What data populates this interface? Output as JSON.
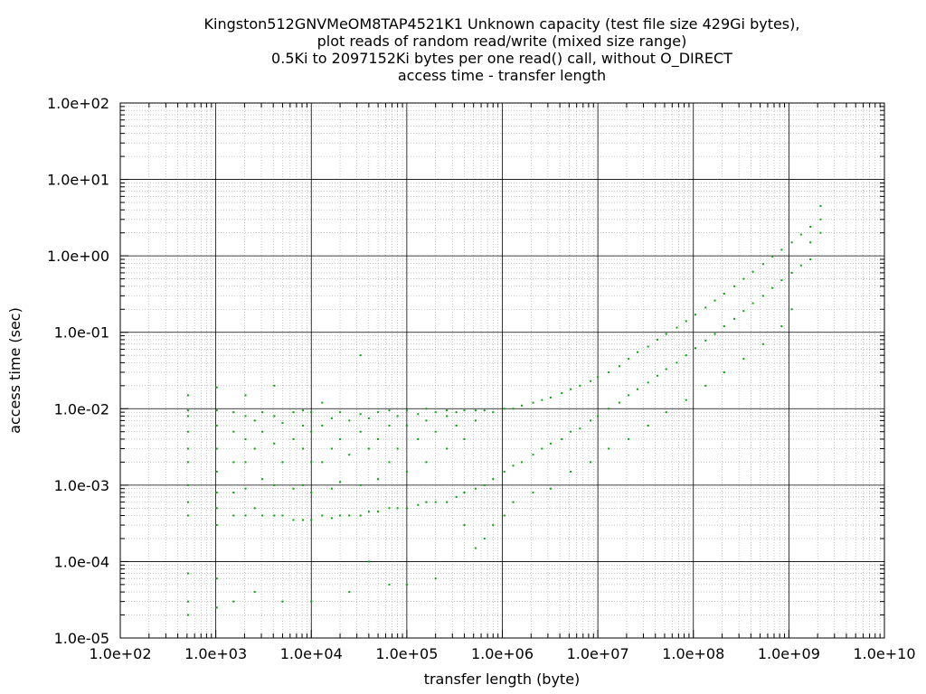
{
  "chart_data": {
    "type": "scatter",
    "title_lines": [
      "Kingston512GNVMeOM8TAP4521K1 Unknown capacity (test file size 429Gi bytes),",
      "plot reads of random read/write (mixed size range)",
      "0.5Ki to 2097152Ki bytes per one read() call, without O_DIRECT",
      "access time - transfer length"
    ],
    "xlabel": "transfer length (byte)",
    "ylabel": "access time (sec)",
    "x_scale": "log",
    "y_scale": "log",
    "xlim": [
      100,
      10000000000
    ],
    "ylim": [
      1e-05,
      100
    ],
    "x_ticks": [
      {
        "value": 100,
        "label": "1.0e+02"
      },
      {
        "value": 1000,
        "label": "1.0e+03"
      },
      {
        "value": 10000,
        "label": "1.0e+04"
      },
      {
        "value": 100000,
        "label": "1.0e+05"
      },
      {
        "value": 1000000,
        "label": "1.0e+06"
      },
      {
        "value": 10000000,
        "label": "1.0e+07"
      },
      {
        "value": 100000000,
        "label": "1.0e+08"
      },
      {
        "value": 1000000000,
        "label": "1.0e+09"
      },
      {
        "value": 10000000000,
        "label": "1.0e+10"
      }
    ],
    "y_ticks": [
      {
        "value": 1e-05,
        "label": "1.0e-05"
      },
      {
        "value": 0.0001,
        "label": "1.0e-04"
      },
      {
        "value": 0.001,
        "label": "1.0e-03"
      },
      {
        "value": 0.01,
        "label": "1.0e-02"
      },
      {
        "value": 0.1,
        "label": "1.0e-01"
      },
      {
        "value": 1,
        "label": "1.0e+00"
      },
      {
        "value": 10,
        "label": "1.0e+01"
      },
      {
        "value": 100,
        "label": "1.0e+02"
      }
    ],
    "grid": true,
    "legend": false,
    "series": [
      {
        "color": "#00aa00",
        "points": [
          [
            512,
            0.0004
          ],
          [
            512,
            0.0006
          ],
          [
            512,
            0.001
          ],
          [
            512,
            0.002
          ],
          [
            512,
            0.003
          ],
          [
            512,
            0.005
          ],
          [
            512,
            0.008
          ],
          [
            512,
            0.0095
          ],
          [
            512,
            0.015
          ],
          [
            512,
            7e-05
          ],
          [
            512,
            3e-05
          ],
          [
            512,
            2e-05
          ],
          [
            1024,
            0.0003
          ],
          [
            1024,
            0.0005
          ],
          [
            1024,
            0.0008
          ],
          [
            1024,
            0.0015
          ],
          [
            1024,
            0.003
          ],
          [
            1024,
            0.006
          ],
          [
            1024,
            0.0095
          ],
          [
            1024,
            0.019
          ],
          [
            1024,
            6e-05
          ],
          [
            1024,
            2.5e-05
          ],
          [
            1536,
            0.0004
          ],
          [
            1536,
            0.0008
          ],
          [
            1536,
            0.002
          ],
          [
            1536,
            0.005
          ],
          [
            1536,
            0.009
          ],
          [
            1536,
            3e-05
          ],
          [
            2048,
            0.0004
          ],
          [
            2048,
            0.0009
          ],
          [
            2048,
            0.002
          ],
          [
            2048,
            0.004
          ],
          [
            2048,
            0.008
          ],
          [
            2048,
            0.015
          ],
          [
            2560,
            0.0005
          ],
          [
            2560,
            0.003
          ],
          [
            2560,
            0.007
          ],
          [
            2560,
            4e-05
          ],
          [
            3072,
            0.0004
          ],
          [
            3072,
            0.0012
          ],
          [
            3072,
            0.005
          ],
          [
            3072,
            0.009
          ],
          [
            4096,
            0.0004
          ],
          [
            4096,
            0.001
          ],
          [
            4096,
            0.0035
          ],
          [
            4096,
            0.008
          ],
          [
            4096,
            0.02
          ],
          [
            5000,
            0.0004
          ],
          [
            5000,
            0.002
          ],
          [
            5000,
            0.0065
          ],
          [
            5000,
            3e-05
          ],
          [
            6500,
            0.00035
          ],
          [
            6500,
            0.0009
          ],
          [
            6500,
            0.004
          ],
          [
            6500,
            0.009
          ],
          [
            8192,
            0.00035
          ],
          [
            8192,
            0.001
          ],
          [
            8192,
            0.003
          ],
          [
            8192,
            0.006
          ],
          [
            8192,
            0.0095
          ],
          [
            10000,
            0.00035
          ],
          [
            10000,
            0.0008
          ],
          [
            10000,
            0.002
          ],
          [
            10000,
            0.005
          ],
          [
            10000,
            0.009
          ],
          [
            10000,
            3e-05
          ],
          [
            13000,
            0.0004
          ],
          [
            13000,
            0.002
          ],
          [
            13000,
            0.006
          ],
          [
            13000,
            0.012
          ],
          [
            16384,
            0.00037
          ],
          [
            16384,
            0.0009
          ],
          [
            16384,
            0.003
          ],
          [
            16384,
            0.0075
          ],
          [
            20000,
            0.0004
          ],
          [
            20000,
            0.0011
          ],
          [
            20000,
            0.004
          ],
          [
            20000,
            0.009
          ],
          [
            25000,
            0.0004
          ],
          [
            25000,
            0.0025
          ],
          [
            25000,
            0.007
          ],
          [
            25000,
            4e-05
          ],
          [
            32768,
            0.0004
          ],
          [
            32768,
            0.001
          ],
          [
            32768,
            0.005
          ],
          [
            32768,
            0.0085
          ],
          [
            32768,
            0.05
          ],
          [
            40000,
            0.00045
          ],
          [
            40000,
            0.003
          ],
          [
            40000,
            0.0075
          ],
          [
            40000,
            0.0001
          ],
          [
            50000,
            0.00045
          ],
          [
            50000,
            0.0012
          ],
          [
            50000,
            0.004
          ],
          [
            50000,
            0.009
          ],
          [
            65536,
            0.0005
          ],
          [
            65536,
            0.002
          ],
          [
            65536,
            0.006
          ],
          [
            65536,
            0.0095
          ],
          [
            65536,
            5e-05
          ],
          [
            80000,
            0.0005
          ],
          [
            80000,
            0.003
          ],
          [
            80000,
            0.008
          ],
          [
            100000,
            0.0005
          ],
          [
            100000,
            0.0015
          ],
          [
            100000,
            0.006
          ],
          [
            100000,
            0.0095
          ],
          [
            100000,
            5e-05
          ],
          [
            131072,
            0.00055
          ],
          [
            131072,
            0.004
          ],
          [
            131072,
            0.0085
          ],
          [
            160000,
            0.0006
          ],
          [
            160000,
            0.002
          ],
          [
            160000,
            0.007
          ],
          [
            160000,
            0.01
          ],
          [
            200000,
            0.0006
          ],
          [
            200000,
            0.005
          ],
          [
            200000,
            0.009
          ],
          [
            200000,
            6e-05
          ],
          [
            262144,
            0.0006
          ],
          [
            262144,
            0.003
          ],
          [
            262144,
            0.008
          ],
          [
            262144,
            0.0095
          ],
          [
            330000,
            0.0007
          ],
          [
            330000,
            0.006
          ],
          [
            330000,
            0.009
          ],
          [
            400000,
            0.0008
          ],
          [
            400000,
            0.004
          ],
          [
            400000,
            0.0095
          ],
          [
            400000,
            0.0003
          ],
          [
            524288,
            0.0009
          ],
          [
            524288,
            0.007
          ],
          [
            524288,
            0.0095
          ],
          [
            524288,
            0.00015
          ],
          [
            650000,
            0.001
          ],
          [
            650000,
            0.0095
          ],
          [
            650000,
            0.0002
          ],
          [
            800000,
            0.0012
          ],
          [
            800000,
            0.009
          ],
          [
            800000,
            0.0003
          ],
          [
            1048576,
            0.0015
          ],
          [
            1048576,
            0.01
          ],
          [
            1048576,
            0.0004
          ],
          [
            1300000,
            0.0018
          ],
          [
            1300000,
            0.01
          ],
          [
            1300000,
            0.0006
          ],
          [
            1600000,
            0.002
          ],
          [
            1600000,
            0.011
          ],
          [
            2097152,
            0.0025
          ],
          [
            2097152,
            0.012
          ],
          [
            2097152,
            0.0008
          ],
          [
            2600000,
            0.003
          ],
          [
            2600000,
            0.013
          ],
          [
            3200000,
            0.0035
          ],
          [
            3200000,
            0.014
          ],
          [
            3200000,
            0.0009
          ],
          [
            4194304,
            0.004
          ],
          [
            4194304,
            0.016
          ],
          [
            5200000,
            0.005
          ],
          [
            5200000,
            0.018
          ],
          [
            5200000,
            0.0015
          ],
          [
            6500000,
            0.0055
          ],
          [
            6500000,
            0.02
          ],
          [
            8388608,
            0.007
          ],
          [
            8388608,
            0.023
          ],
          [
            8388608,
            0.002
          ],
          [
            10000000,
            0.008
          ],
          [
            10000000,
            0.026
          ],
          [
            13000000,
            0.01
          ],
          [
            13000000,
            0.03
          ],
          [
            13000000,
            0.003
          ],
          [
            16777216,
            0.012
          ],
          [
            16777216,
            0.036
          ],
          [
            21000000,
            0.015
          ],
          [
            21000000,
            0.045
          ],
          [
            21000000,
            0.004
          ],
          [
            26000000,
            0.018
          ],
          [
            26000000,
            0.055
          ],
          [
            33554432,
            0.022
          ],
          [
            33554432,
            0.065
          ],
          [
            33554432,
            0.006
          ],
          [
            42000000,
            0.027
          ],
          [
            42000000,
            0.08
          ],
          [
            52000000,
            0.033
          ],
          [
            52000000,
            0.095
          ],
          [
            52000000,
            0.009
          ],
          [
            67108864,
            0.04
          ],
          [
            67108864,
            0.115
          ],
          [
            84000000,
            0.05
          ],
          [
            84000000,
            0.14
          ],
          [
            84000000,
            0.013
          ],
          [
            105000000,
            0.062
          ],
          [
            105000000,
            0.17
          ],
          [
            134217728,
            0.078
          ],
          [
            134217728,
            0.21
          ],
          [
            134217728,
            0.02
          ],
          [
            168000000,
            0.095
          ],
          [
            168000000,
            0.26
          ],
          [
            210000000,
            0.12
          ],
          [
            210000000,
            0.32
          ],
          [
            210000000,
            0.03
          ],
          [
            268435456,
            0.15
          ],
          [
            268435456,
            0.4
          ],
          [
            336000000,
            0.19
          ],
          [
            336000000,
            0.5
          ],
          [
            336000000,
            0.045
          ],
          [
            420000000,
            0.24
          ],
          [
            420000000,
            0.62
          ],
          [
            536870912,
            0.3
          ],
          [
            536870912,
            0.78
          ],
          [
            536870912,
            0.07
          ],
          [
            672000000,
            0.38
          ],
          [
            672000000,
            0.98
          ],
          [
            840000000,
            0.48
          ],
          [
            840000000,
            1.2
          ],
          [
            840000000,
            0.12
          ],
          [
            1073741824,
            0.6
          ],
          [
            1073741824,
            1.5
          ],
          [
            1073741824,
            0.2
          ],
          [
            1340000000,
            0.75
          ],
          [
            1340000000,
            1.9
          ],
          [
            1680000000,
            1.5
          ],
          [
            1680000000,
            2.4
          ],
          [
            1680000000,
            0.9
          ],
          [
            2147483648,
            2.0
          ],
          [
            2147483648,
            3.0
          ],
          [
            2147483648,
            4.5
          ]
        ]
      }
    ]
  }
}
